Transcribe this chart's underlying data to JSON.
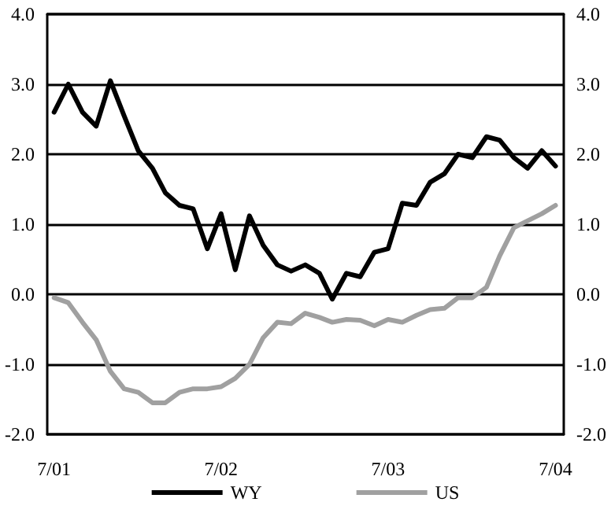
{
  "chart_data": {
    "type": "line",
    "x": [
      "2001-07",
      "2001-08",
      "2001-09",
      "2001-10",
      "2001-11",
      "2001-12",
      "2002-01",
      "2002-02",
      "2002-03",
      "2002-04",
      "2002-05",
      "2002-06",
      "2002-07",
      "2002-08",
      "2002-09",
      "2002-10",
      "2002-11",
      "2002-12",
      "2003-01",
      "2003-02",
      "2003-03",
      "2003-04",
      "2003-05",
      "2003-06",
      "2003-07",
      "2003-08",
      "2003-09",
      "2003-10",
      "2003-11",
      "2003-12",
      "2004-01",
      "2004-02",
      "2004-03",
      "2004-04",
      "2004-05",
      "2004-06",
      "2004-07"
    ],
    "series": [
      {
        "name": "WY",
        "color": "#000000",
        "values": [
          2.6,
          3.0,
          2.6,
          2.4,
          3.05,
          2.55,
          2.05,
          1.8,
          1.45,
          1.27,
          1.22,
          0.65,
          1.15,
          0.35,
          1.12,
          0.7,
          0.42,
          0.33,
          0.42,
          0.3,
          -0.07,
          0.3,
          0.25,
          0.6,
          0.65,
          1.3,
          1.27,
          1.6,
          1.72,
          2.0,
          1.95,
          2.25,
          2.2,
          1.95,
          1.8,
          2.05,
          1.83
        ]
      },
      {
        "name": "US",
        "color": "#a0a0a0",
        "values": [
          -0.05,
          -0.12,
          -0.4,
          -0.65,
          -1.1,
          -1.35,
          -1.4,
          -1.55,
          -1.55,
          -1.4,
          -1.35,
          -1.35,
          -1.32,
          -1.2,
          -1.0,
          -0.62,
          -0.4,
          -0.42,
          -0.27,
          -0.33,
          -0.4,
          -0.36,
          -0.37,
          -0.45,
          -0.36,
          -0.4,
          -0.3,
          -0.22,
          -0.2,
          -0.05,
          -0.05,
          0.1,
          0.55,
          0.95,
          1.05,
          1.15,
          1.27
        ]
      }
    ],
    "xlim": [
      "2001-06-16",
      "2004-07-19"
    ],
    "xticks": [
      {
        "value": "2001-07",
        "label": "7/01"
      },
      {
        "value": "2002-07",
        "label": "7/02"
      },
      {
        "value": "2003-07",
        "label": "7/03"
      },
      {
        "value": "2004-07",
        "label": "7/04"
      }
    ],
    "ylim": [
      -2,
      4
    ],
    "yticks": [
      {
        "value": -2,
        "label": "-2.0"
      },
      {
        "value": -1,
        "label": "-1.0"
      },
      {
        "value": 0,
        "label": "0.0"
      },
      {
        "value": 1,
        "label": "1.0"
      },
      {
        "value": 2,
        "label": "2.0"
      },
      {
        "value": 3,
        "label": "3.0"
      },
      {
        "value": 4,
        "label": "4.0"
      }
    ],
    "y2lim": [
      -2,
      4
    ],
    "y2ticks": [
      {
        "value": -2,
        "label": "-2.0"
      },
      {
        "value": -1,
        "label": "-1.0"
      },
      {
        "value": 0,
        "label": "0.0"
      },
      {
        "value": 1,
        "label": "1.0"
      },
      {
        "value": 2,
        "label": "2.0"
      },
      {
        "value": 3,
        "label": "3.0"
      },
      {
        "value": 4,
        "label": "4.0"
      }
    ],
    "grid": "y",
    "legend": "bottom",
    "marker": "none",
    "line_style": "solid"
  }
}
